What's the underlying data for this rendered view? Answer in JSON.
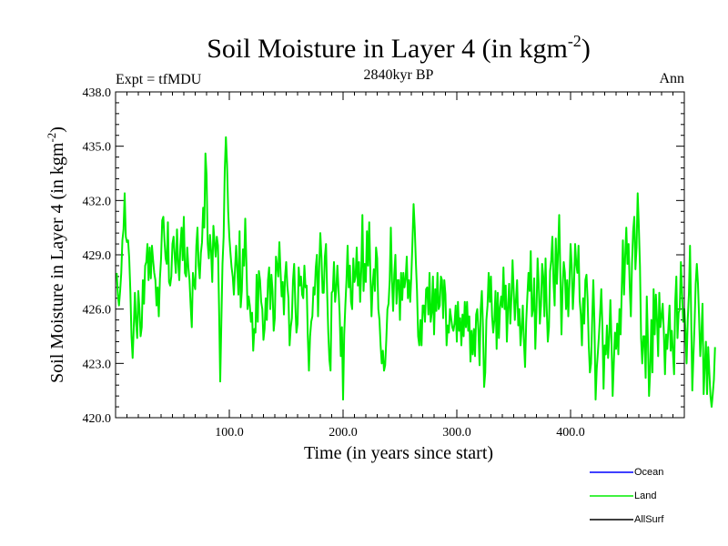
{
  "chart_data": {
    "type": "line",
    "title": "Soil Moisture in Layer 4 (in kgm",
    "title_sup": "-2",
    "title_close": ")",
    "subtitle": "2840kyr BP",
    "left_note": "Expt = tfMDU",
    "right_note": "Ann",
    "xlabel": "Time (in years since start)",
    "ylabel": "Soil Moisture in Layer 4 (in kgm",
    "ylabel_sup": "-2",
    "ylabel_close": ")",
    "xlim": [
      0,
      500
    ],
    "ylim": [
      420.0,
      438.0
    ],
    "x_ticks": [
      100,
      200,
      300,
      400
    ],
    "x_tick_labels": [
      "100.0",
      "200.0",
      "300.0",
      "400.0"
    ],
    "y_ticks": [
      420,
      423,
      426,
      429,
      432,
      435,
      438
    ],
    "y_tick_labels": [
      "420.0",
      "423.0",
      "426.0",
      "429.0",
      "432.0",
      "435.0",
      "438.0"
    ],
    "x_start": 1,
    "x_step": 1,
    "series": [
      {
        "name": "Land",
        "color": "#00ee00",
        "values": [
          428.0,
          426.8,
          426.2,
          427.0,
          428.0,
          429.8,
          430.4,
          432.4,
          430.0,
          429.7,
          429.8,
          428.8,
          427.0,
          424.5,
          423.3,
          425.0,
          426.9,
          425.3,
          424.4,
          427.0,
          426.0,
          424.5,
          425.0,
          427.6,
          426.3,
          428.4,
          428.6,
          429.6,
          427.6,
          429.4,
          427.7,
          429.5,
          428.7,
          428.0,
          427.6,
          426.2,
          427.2,
          425.6,
          427.7,
          428.8,
          430.9,
          431.1,
          429.8,
          428.8,
          428.5,
          430.8,
          427.5,
          427.3,
          427.8,
          429.6,
          430.0,
          428.9,
          428.0,
          430.4,
          428.6,
          427.6,
          429.5,
          430.5,
          428.7,
          431.1,
          428.0,
          427.8,
          429.4,
          428.3,
          427.6,
          426.2,
          425.0,
          428.0,
          427.4,
          427.1,
          429.5,
          430.5,
          428.4,
          427.7,
          429.1,
          429.7,
          431.6,
          430.5,
          434.6,
          433.4,
          429.6,
          428.8,
          430.1,
          429.2,
          427.5,
          430.6,
          429.7,
          428.9,
          430.0,
          429.5,
          426.0,
          422.0,
          425.3,
          428.5,
          430.0,
          433.7,
          435.5,
          434.0,
          431.4,
          430.0,
          429.1,
          428.3,
          427.8,
          426.8,
          428.2,
          429.5,
          428.2,
          426.8,
          430.3,
          426.1,
          427.0,
          429.3,
          428.4,
          431.0,
          428.6,
          426.0,
          426.7,
          426.2,
          425.3,
          425.8,
          423.7,
          424.9,
          424.7,
          427.9,
          425.3,
          428.1,
          427.6,
          426.4,
          426.0,
          424.3,
          424.9,
          426.6,
          425.4,
          427.6,
          428.3,
          426.0,
          427.9,
          427.0,
          424.8,
          425.5,
          428.9,
          428.4,
          427.8,
          429.7,
          428.1,
          426.7,
          427.5,
          425.7,
          427.8,
          428.6,
          427.3,
          426.6,
          424.0,
          425.0,
          425.5,
          427.6,
          428.5,
          426.3,
          424.7,
          425.2,
          428.3,
          427.3,
          427.8,
          426.8,
          426.6,
          428.4,
          427.2,
          427.3,
          424.5,
          422.6,
          424.5,
          425.3,
          425.6,
          427.2,
          426.8,
          428.3,
          429.0,
          425.6,
          428.3,
          430.2,
          428.9,
          426.9,
          426.9,
          428.9,
          429.6,
          426.9,
          424.7,
          423.2,
          422.6,
          426.9,
          427.0,
          428.6,
          426.4,
          427.1,
          428.4,
          427.1,
          425.7,
          423.4,
          425.0,
          421.0,
          424.6,
          426.2,
          427.6,
          429.5,
          427.2,
          428.4,
          426.4,
          426.0,
          428.8,
          427.5,
          427.8,
          429.4,
          427.3,
          428.6,
          426.4,
          428.1,
          431.2,
          427.0,
          428.5,
          427.5,
          430.3,
          428.4,
          430.8,
          428.0,
          425.6,
          427.3,
          428.2,
          427.0,
          429.4,
          428.8,
          426.0,
          425.4,
          424.0,
          423.0,
          423.7,
          422.6,
          422.9,
          424.3,
          426.0,
          426.3,
          427.6,
          430.5,
          427.6,
          425.9,
          427.9,
          429.0,
          426.3,
          427.6,
          427.6,
          425.4,
          428.0,
          426.5,
          428.0,
          427.2,
          427.7,
          428.9,
          426.6,
          427.6,
          426.4,
          427.8,
          429.7,
          431.8,
          430.5,
          428.6,
          427.0,
          424.5,
          424.0,
          425.4,
          424.0,
          426.2,
          426.2,
          425.3,
          427.1,
          427.2,
          425.7,
          428.0,
          425.3,
          425.8,
          427.8,
          424.6,
          427.1,
          425.9,
          428.0,
          426.0,
          426.2,
          427.8,
          427.6,
          425.5,
          427.6,
          426.8,
          424.0,
          425.1,
          424.7,
          426.0,
          425.5,
          425.0,
          424.8,
          425.2,
          426.2,
          424.2,
          426.4,
          424.8,
          425.5,
          424.0,
          425.7,
          424.5,
          426.4,
          425.0,
          426.4,
          424.8,
          425.6,
          423.1,
          424.8,
          423.5,
          424.9,
          423.4,
          425.7,
          426.0,
          424.8,
          422.9,
          426.0,
          427.0,
          425.0,
          421.7,
          422.5,
          425.4,
          426.2,
          428.0,
          426.4,
          427.8,
          425.6,
          424.7,
          425.4,
          427.0,
          423.8,
          426.9,
          424.4,
          426.1,
          426.7,
          426.1,
          428.3,
          426.0,
          427.3,
          424.2,
          426.1,
          427.4,
          425.2,
          426.6,
          428.7,
          427.0,
          425.4,
          426.5,
          427.6,
          425.1,
          426.0,
          424.0,
          424.9,
          426.2,
          424.2,
          422.8,
          425.3,
          426.7,
          428.0,
          427.0,
          429.2,
          425.6,
          426.0,
          427.7,
          423.8,
          425.8,
          428.8,
          427.4,
          425.2,
          426.2,
          428.5,
          427.8,
          425.6,
          428.8,
          426.1,
          424.2,
          425.0,
          428.1,
          428.7,
          430.0,
          427.5,
          426.2,
          429.9,
          427.4,
          429.1,
          431.2,
          428.0,
          424.6,
          427.2,
          428.6,
          428.0,
          426.0,
          427.6,
          425.6,
          427.4,
          429.6,
          428.4,
          426.0,
          427.3,
          429.6,
          428.5,
          428.0,
          429.5,
          426.5,
          425.7,
          424.0,
          426.6,
          425.2,
          427.6,
          427.9,
          426.5,
          424.0,
          422.5,
          423.0,
          425.4,
          427.6,
          425.2,
          421.0,
          422.7,
          423.6,
          424.6,
          425.8,
          427.1,
          425.0,
          421.6,
          424.0,
          423.5,
          425.1,
          423.3,
          424.5,
          426.5,
          424.2,
          421.2,
          423.0,
          424.7,
          423.8,
          425.2,
          423.5,
          426.0,
          424.6,
          427.1,
          429.8,
          426.8,
          428.9,
          430.5,
          428.5,
          429.6,
          427.3,
          425.6,
          428.5,
          430.3,
          431.1,
          428.2,
          429.4,
          432.4,
          430.6,
          428.4,
          424.4,
          423.0,
          424.5,
          424.5,
          422.2,
          426.7,
          424.3,
          421.2,
          422.6,
          425.4,
          422.5,
          427.1,
          424.6,
          426.8,
          425.4,
          423.4,
          426.9,
          425.0,
          425.6,
          426.3,
          424.7,
          422.4,
          424.6,
          423.8,
          425.0,
          426.2,
          423.7,
          424.8,
          423.6,
          422.4,
          426.4,
          427.8,
          424.4,
          425.8,
          426.0,
          428.6,
          426.9,
          425.3,
          426.0,
          424.8,
          423.0,
          425.4,
          426.8,
          429.5,
          425.7,
          421.5,
          423.4,
          425.2,
          427.4,
          428.5,
          427.4,
          425.5,
          423.4,
          424.6,
          426.3,
          421.3,
          422.9,
          424.2,
          421.3,
          423.9,
          422.5,
          421.2,
          420.6,
          421.3,
          422.1,
          423.9
        ]
      },
      {
        "name": "Ocean",
        "color": "#0000ff",
        "values": []
      },
      {
        "name": "AllSurf",
        "color": "#000000",
        "values": []
      }
    ],
    "legend": [
      {
        "label": "Ocean",
        "color": "#0000ff"
      },
      {
        "label": "Land",
        "color": "#00ee00"
      },
      {
        "label": "AllSurf",
        "color": "#000000"
      }
    ],
    "legend_placement": "bottom-right"
  }
}
